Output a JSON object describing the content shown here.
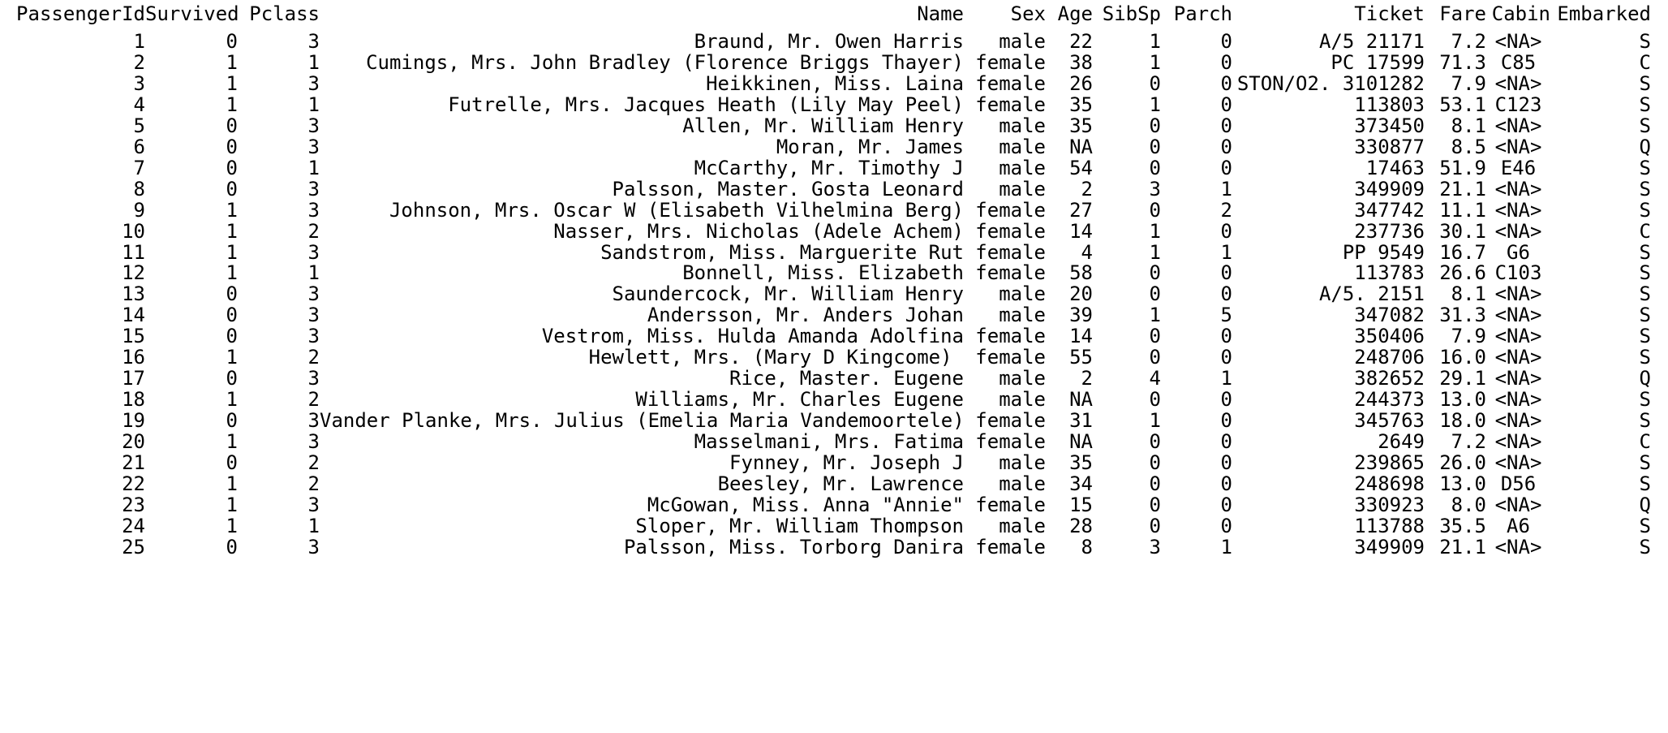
{
  "table": {
    "columns": [
      "PassengerId",
      "Survived",
      "Pclass",
      "Name",
      "Sex",
      "Age",
      "SibSp",
      "Parch",
      "Ticket",
      "Fare",
      "Cabin",
      "Embarked"
    ],
    "rows": [
      [
        "1",
        "0",
        "3",
        "Braund, Mr. Owen Harris",
        "male",
        "22",
        "1",
        "0",
        "A/5 21171",
        "7.2",
        "<NA>",
        "S"
      ],
      [
        "2",
        "1",
        "1",
        "Cumings, Mrs. John Bradley (Florence Briggs Thayer)",
        "female",
        "38",
        "1",
        "0",
        "PC 17599",
        "71.3",
        "C85",
        "C"
      ],
      [
        "3",
        "1",
        "3",
        "Heikkinen, Miss. Laina",
        "female",
        "26",
        "0",
        "0",
        "STON/O2. 3101282",
        "7.9",
        "<NA>",
        "S"
      ],
      [
        "4",
        "1",
        "1",
        "Futrelle, Mrs. Jacques Heath (Lily May Peel)",
        "female",
        "35",
        "1",
        "0",
        "113803",
        "53.1",
        "C123",
        "S"
      ],
      [
        "5",
        "0",
        "3",
        "Allen, Mr. William Henry",
        "male",
        "35",
        "0",
        "0",
        "373450",
        "8.1",
        "<NA>",
        "S"
      ],
      [
        "6",
        "0",
        "3",
        "Moran, Mr. James",
        "male",
        "NA",
        "0",
        "0",
        "330877",
        "8.5",
        "<NA>",
        "Q"
      ],
      [
        "7",
        "0",
        "1",
        "McCarthy, Mr. Timothy J",
        "male",
        "54",
        "0",
        "0",
        "17463",
        "51.9",
        "E46",
        "S"
      ],
      [
        "8",
        "0",
        "3",
        "Palsson, Master. Gosta Leonard",
        "male",
        "2",
        "3",
        "1",
        "349909",
        "21.1",
        "<NA>",
        "S"
      ],
      [
        "9",
        "1",
        "3",
        "Johnson, Mrs. Oscar W (Elisabeth Vilhelmina Berg)",
        "female",
        "27",
        "0",
        "2",
        "347742",
        "11.1",
        "<NA>",
        "S"
      ],
      [
        "10",
        "1",
        "2",
        "Nasser, Mrs. Nicholas (Adele Achem)",
        "female",
        "14",
        "1",
        "0",
        "237736",
        "30.1",
        "<NA>",
        "C"
      ],
      [
        "11",
        "1",
        "3",
        "Sandstrom, Miss. Marguerite Rut",
        "female",
        "4",
        "1",
        "1",
        "PP 9549",
        "16.7",
        "G6",
        "S"
      ],
      [
        "12",
        "1",
        "1",
        "Bonnell, Miss. Elizabeth",
        "female",
        "58",
        "0",
        "0",
        "113783",
        "26.6",
        "C103",
        "S"
      ],
      [
        "13",
        "0",
        "3",
        "Saundercock, Mr. William Henry",
        "male",
        "20",
        "0",
        "0",
        "A/5. 2151",
        "8.1",
        "<NA>",
        "S"
      ],
      [
        "14",
        "0",
        "3",
        "Andersson, Mr. Anders Johan",
        "male",
        "39",
        "1",
        "5",
        "347082",
        "31.3",
        "<NA>",
        "S"
      ],
      [
        "15",
        "0",
        "3",
        "Vestrom, Miss. Hulda Amanda Adolfina",
        "female",
        "14",
        "0",
        "0",
        "350406",
        "7.9",
        "<NA>",
        "S"
      ],
      [
        "16",
        "1",
        "2",
        "Hewlett, Mrs. (Mary D Kingcome) ",
        "female",
        "55",
        "0",
        "0",
        "248706",
        "16.0",
        "<NA>",
        "S"
      ],
      [
        "17",
        "0",
        "3",
        "Rice, Master. Eugene",
        "male",
        "2",
        "4",
        "1",
        "382652",
        "29.1",
        "<NA>",
        "Q"
      ],
      [
        "18",
        "1",
        "2",
        "Williams, Mr. Charles Eugene",
        "male",
        "NA",
        "0",
        "0",
        "244373",
        "13.0",
        "<NA>",
        "S"
      ],
      [
        "19",
        "0",
        "3",
        "Vander Planke, Mrs. Julius (Emelia Maria Vandemoortele)",
        "female",
        "31",
        "1",
        "0",
        "345763",
        "18.0",
        "<NA>",
        "S"
      ],
      [
        "20",
        "1",
        "3",
        "Masselmani, Mrs. Fatima",
        "female",
        "NA",
        "0",
        "0",
        "2649",
        "7.2",
        "<NA>",
        "C"
      ],
      [
        "21",
        "0",
        "2",
        "Fynney, Mr. Joseph J",
        "male",
        "35",
        "0",
        "0",
        "239865",
        "26.0",
        "<NA>",
        "S"
      ],
      [
        "22",
        "1",
        "2",
        "Beesley, Mr. Lawrence",
        "male",
        "34",
        "0",
        "0",
        "248698",
        "13.0",
        "D56",
        "S"
      ],
      [
        "23",
        "1",
        "3",
        "McGowan, Miss. Anna \"Annie\"",
        "female",
        "15",
        "0",
        "0",
        "330923",
        "8.0",
        "<NA>",
        "Q"
      ],
      [
        "24",
        "1",
        "1",
        "Sloper, Mr. William Thompson",
        "male",
        "28",
        "0",
        "0",
        "113788",
        "35.5",
        "A6",
        "S"
      ],
      [
        "25",
        "0",
        "3",
        "Palsson, Miss. Torborg Danira",
        "female",
        "8",
        "3",
        "1",
        "349909",
        "21.1",
        "<NA>",
        "S"
      ]
    ]
  }
}
